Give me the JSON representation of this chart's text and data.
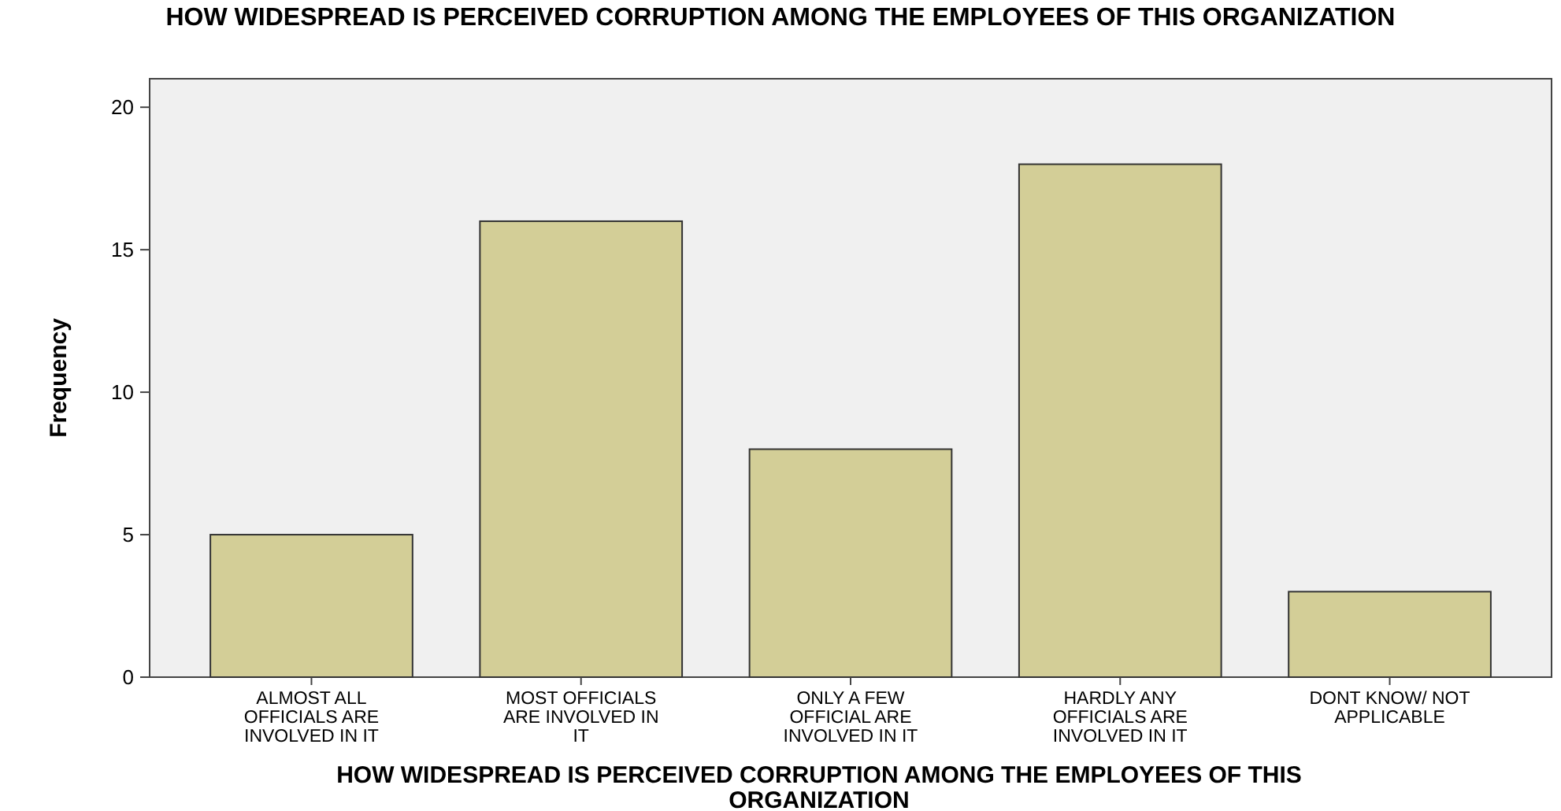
{
  "chart_data": {
    "type": "bar",
    "title": "HOW WIDESPREAD IS PERCEIVED CORRUPTION AMONG THE EMPLOYEES OF THIS ORGANIZATION",
    "xlabel": "HOW WIDESPREAD IS PERCEIVED CORRUPTION AMONG THE EMPLOYEES OF THIS ORGANIZATION",
    "ylabel": "Frequency",
    "categories": [
      "ALMOST ALL OFFICIALS ARE INVOLVED IN IT",
      "MOST OFFICIALS ARE INVOLVED IN IT",
      "ONLY A FEW OFFICIAL ARE INVOLVED IN IT",
      "HARDLY ANY OFFICIALS ARE INVOLVED IN IT",
      "DONT KNOW/ NOT APPLICABLE"
    ],
    "values": [
      5,
      16,
      8,
      18,
      3
    ],
    "color": "#d3ce97",
    "ylim": [
      0,
      21
    ],
    "yticks": [
      0,
      5,
      10,
      15,
      20
    ],
    "grid": false
  }
}
